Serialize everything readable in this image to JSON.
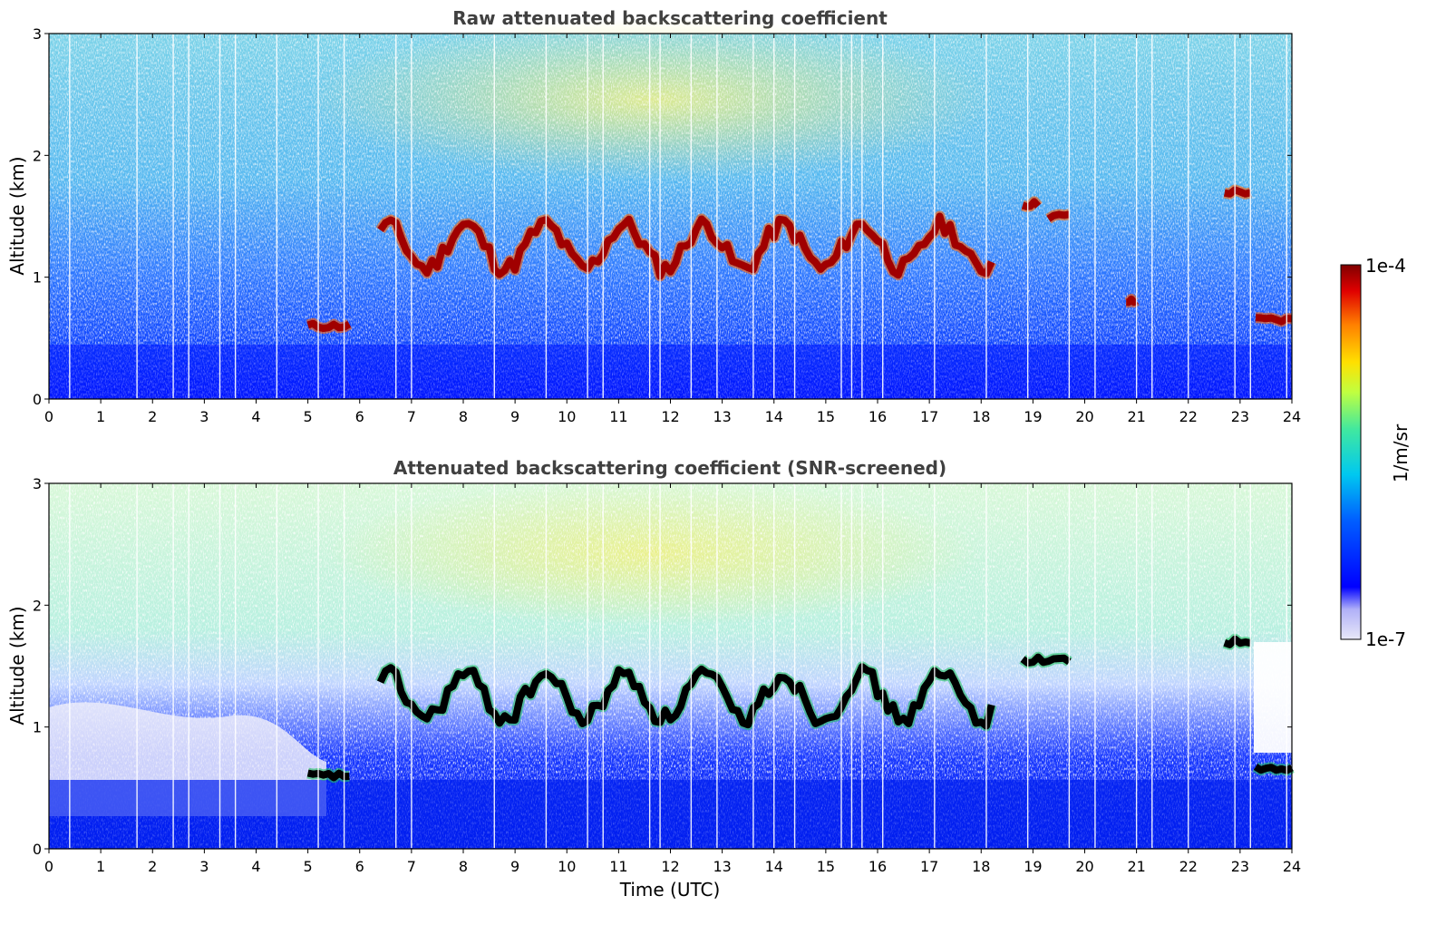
{
  "chart_data": [
    {
      "type": "heatmap",
      "title": "Raw attenuated backscattering coefficient",
      "xlabel": "",
      "ylabel": "Altitude (km)",
      "xlim": [
        0,
        24
      ],
      "ylim": [
        0,
        3
      ],
      "xticks": [
        "0",
        "1",
        "2",
        "3",
        "4",
        "5",
        "6",
        "7",
        "8",
        "9",
        "10",
        "11",
        "12",
        "13",
        "14",
        "15",
        "16",
        "17",
        "18",
        "19",
        "20",
        "21",
        "22",
        "23",
        "24"
      ],
      "yticks": [
        "0",
        "1",
        "2",
        "3"
      ],
      "cloud_layers": [
        {
          "t_start": 5.0,
          "t_end": 5.8,
          "altitude_km": 0.6
        },
        {
          "t_start": 6.4,
          "t_end": 18.2,
          "altitude_km": 1.25
        },
        {
          "t_start": 18.8,
          "t_end": 19.1,
          "altitude_km": 1.6
        },
        {
          "t_start": 19.3,
          "t_end": 19.7,
          "altitude_km": 1.5
        },
        {
          "t_start": 20.8,
          "t_end": 21.0,
          "altitude_km": 0.8
        },
        {
          "t_start": 22.7,
          "t_end": 23.2,
          "altitude_km": 1.7
        },
        {
          "t_start": 23.3,
          "t_end": 24.0,
          "altitude_km": 0.65
        }
      ],
      "boundary_layer_top_km": 0.35
    },
    {
      "type": "heatmap",
      "title": "Attenuated backscattering coefficient (SNR-screened)",
      "xlabel": "Time (UTC)",
      "ylabel": "Altitude (km)",
      "xlim": [
        0,
        24
      ],
      "ylim": [
        0,
        3
      ],
      "xticks": [
        "0",
        "1",
        "2",
        "3",
        "4",
        "5",
        "6",
        "7",
        "8",
        "9",
        "10",
        "11",
        "12",
        "13",
        "14",
        "15",
        "16",
        "17",
        "18",
        "19",
        "20",
        "21",
        "22",
        "23",
        "24"
      ],
      "yticks": [
        "0",
        "1",
        "2",
        "3"
      ],
      "cloud_layers": [
        {
          "t_start": 5.0,
          "t_end": 5.8,
          "altitude_km": 0.6
        },
        {
          "t_start": 6.4,
          "t_end": 18.2,
          "altitude_km": 1.25
        },
        {
          "t_start": 18.8,
          "t_end": 19.7,
          "altitude_km": 1.55
        },
        {
          "t_start": 22.7,
          "t_end": 23.2,
          "altitude_km": 1.7
        },
        {
          "t_start": 23.3,
          "t_end": 24.0,
          "altitude_km": 0.65
        }
      ],
      "screened_region_top_km": 1.8
    }
  ],
  "colorbar": {
    "label": "1/m/sr",
    "max_label": "1e-4",
    "min_label": "1e-7",
    "vmin": 1e-07,
    "vmax": 0.0001,
    "scale": "log",
    "colormap": [
      "#e8e8f8",
      "#0000ff",
      "#00b0ff",
      "#40e8c0",
      "#c0ff40",
      "#ffe000",
      "#ff8000",
      "#e00000",
      "#800000"
    ]
  }
}
